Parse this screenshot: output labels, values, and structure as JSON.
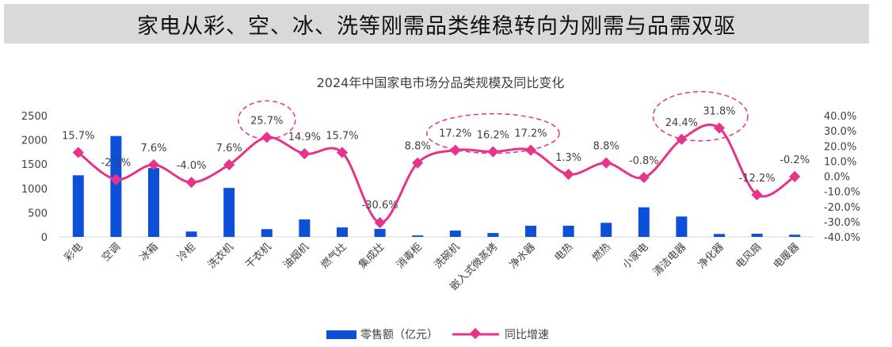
{
  "banner": {
    "title": "家电从彩、空、冰、洗等刚需品类维稳转向为刚需与品需双驱"
  },
  "chart_data": {
    "type": "bar+line",
    "title": "2024年中国家电市场分品类规模及同比变化",
    "categories": [
      "彩电",
      "空调",
      "冰箱",
      "冷柜",
      "洗衣机",
      "干衣机",
      "油烟机",
      "燃气灶",
      "集成灶",
      "消毒柜",
      "洗碗机",
      "嵌入式微蒸烤",
      "净水器",
      "电热",
      "燃热",
      "小家电",
      "清洁电器",
      "净化器",
      "电风扇",
      "电暖器"
    ],
    "series": [
      {
        "name": "零售额（亿元）",
        "type": "bar",
        "axis": "left",
        "color": "#0d4fd9",
        "values": [
          1270,
          2080,
          1420,
          110,
          1010,
          160,
          360,
          195,
          165,
          30,
          130,
          80,
          230,
          230,
          290,
          610,
          420,
          60,
          65,
          45
        ]
      },
      {
        "name": "同比增速",
        "type": "line",
        "axis": "right",
        "color": "#e8338a",
        "values": [
          15.7,
          -2.1,
          7.6,
          -4.0,
          7.6,
          25.7,
          14.9,
          15.7,
          -30.6,
          8.8,
          17.2,
          16.2,
          17.2,
          1.3,
          8.8,
          -0.8,
          24.4,
          31.8,
          -12.2,
          -0.2
        ],
        "labels": [
          "15.7%",
          "-2.1%",
          "7.6%",
          "-4.0%",
          "7.6%",
          "25.7%",
          "14.9%",
          "15.7%",
          "-30.6%",
          "8.8%",
          "17.2%",
          "16.2%",
          "17.2%",
          "1.3%",
          "8.8%",
          "-0.8%",
          "24.4%",
          "31.8%",
          "-12.2%",
          "-0.2%"
        ]
      }
    ],
    "y_left": {
      "ylim": [
        0,
        2500
      ],
      "ticks": [
        "0",
        "500",
        "1000",
        "1500",
        "2000",
        "2500"
      ]
    },
    "y_right": {
      "ylim": [
        -40,
        40
      ],
      "ticks": [
        "-40.0%",
        "-30.0%",
        "-20.0%",
        "-10.0%",
        "0.0%",
        "10.0%",
        "20.0%",
        "30.0%",
        "40.0%"
      ]
    },
    "highlighted_categories": [
      "干衣机",
      "洗碗机",
      "嵌入式微蒸烤",
      "净水器",
      "清洁电器",
      "净化器"
    ],
    "grid": false,
    "legend": "bottom"
  }
}
